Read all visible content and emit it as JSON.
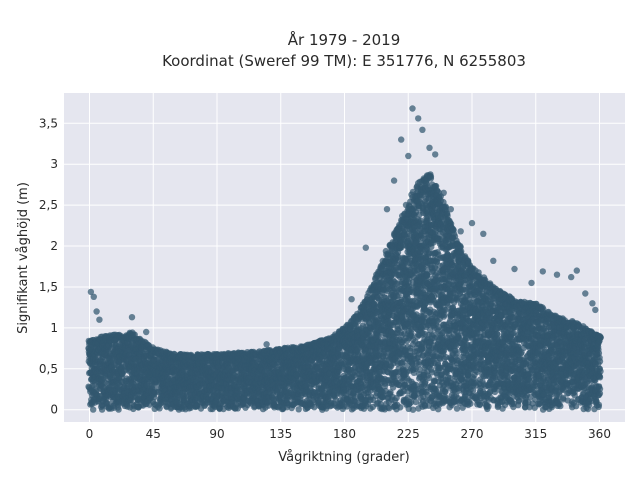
{
  "chart_data": {
    "type": "scatter",
    "title": "År 1979 - 2019",
    "subtitle": "Koordinat (Sweref 99 TM): E 351776, N 6255803",
    "xlabel": "Vågriktning (grader)",
    "ylabel": "Signifikant våghöjd (m)",
    "xlim": [
      -18,
      378
    ],
    "ylim": [
      -0.15,
      3.87
    ],
    "x_ticks": [
      0,
      45,
      90,
      135,
      180,
      225,
      270,
      315,
      360
    ],
    "x_tick_labels": [
      "0",
      "45",
      "90",
      "135",
      "180",
      "225",
      "270",
      "315",
      "360"
    ],
    "y_ticks": [
      0,
      0.5,
      1,
      1.5,
      2,
      2.5,
      3,
      3.5
    ],
    "y_tick_labels": [
      "0",
      "0,5",
      "1",
      "1,5",
      "2",
      "2,5",
      "3",
      "3,5"
    ],
    "grid": true,
    "marker_color": "#32586f",
    "background_color": "#e5e6ef",
    "envelope": {
      "direction_deg": [
        0,
        10,
        20,
        30,
        45,
        60,
        90,
        120,
        150,
        170,
        180,
        190,
        200,
        210,
        220,
        230,
        240,
        250,
        260,
        270,
        285,
        300,
        315,
        330,
        345,
        360
      ],
      "max_hs_m": [
        0.85,
        0.9,
        0.92,
        0.95,
        0.75,
        0.68,
        0.68,
        0.72,
        0.78,
        0.88,
        1.0,
        1.2,
        1.55,
        1.95,
        2.35,
        2.75,
        2.9,
        2.55,
        2.05,
        1.75,
        1.5,
        1.35,
        1.3,
        1.15,
        1.05,
        0.9
      ]
    },
    "outliers": [
      {
        "x": 1,
        "y": 1.44
      },
      {
        "x": 3,
        "y": 1.38
      },
      {
        "x": 5,
        "y": 1.2
      },
      {
        "x": 7,
        "y": 1.1
      },
      {
        "x": 30,
        "y": 1.13
      },
      {
        "x": 40,
        "y": 0.95
      },
      {
        "x": 125,
        "y": 0.8
      },
      {
        "x": 185,
        "y": 1.35
      },
      {
        "x": 195,
        "y": 1.98
      },
      {
        "x": 210,
        "y": 2.45
      },
      {
        "x": 215,
        "y": 2.8
      },
      {
        "x": 220,
        "y": 3.3
      },
      {
        "x": 225,
        "y": 3.1
      },
      {
        "x": 228,
        "y": 3.68
      },
      {
        "x": 232,
        "y": 3.56
      },
      {
        "x": 235,
        "y": 3.42
      },
      {
        "x": 240,
        "y": 3.2
      },
      {
        "x": 244,
        "y": 3.12
      },
      {
        "x": 250,
        "y": 2.65
      },
      {
        "x": 255,
        "y": 2.45
      },
      {
        "x": 262,
        "y": 2.18
      },
      {
        "x": 270,
        "y": 2.28
      },
      {
        "x": 278,
        "y": 2.15
      },
      {
        "x": 285,
        "y": 1.82
      },
      {
        "x": 300,
        "y": 1.72
      },
      {
        "x": 312,
        "y": 1.55
      },
      {
        "x": 320,
        "y": 1.69
      },
      {
        "x": 330,
        "y": 1.65
      },
      {
        "x": 340,
        "y": 1.62
      },
      {
        "x": 344,
        "y": 1.7
      },
      {
        "x": 350,
        "y": 1.42
      },
      {
        "x": 355,
        "y": 1.3
      },
      {
        "x": 357,
        "y": 1.22
      }
    ]
  }
}
